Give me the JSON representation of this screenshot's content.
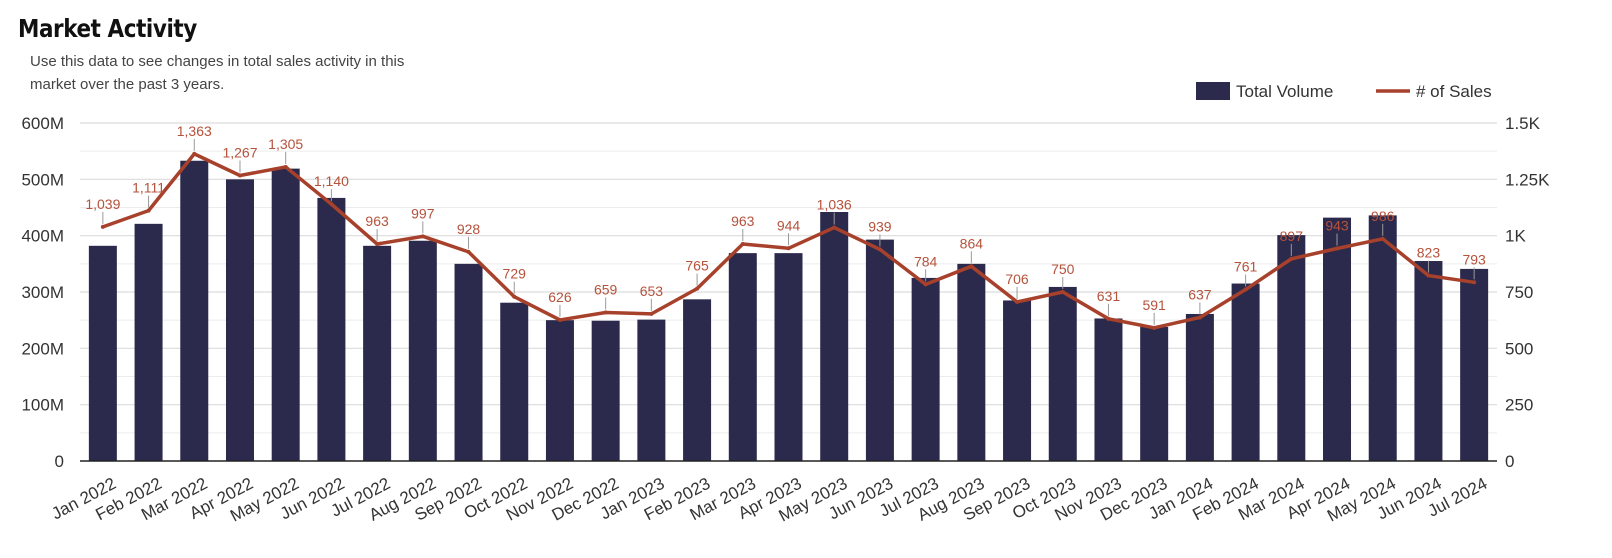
{
  "header": {
    "title": "Market Activity",
    "subtitle": "Use this data to see changes in total sales activity in this market over the past 3 years."
  },
  "colors": {
    "bar": "#2b2a4c",
    "line": "#a8412b",
    "label": "#b5523b",
    "grid": "#dcdcdc"
  },
  "chart_data": {
    "type": "bar",
    "title": "Market Activity",
    "categories": [
      "Jan 2022",
      "Feb 2022",
      "Mar 2022",
      "Apr 2022",
      "May 2022",
      "Jun 2022",
      "Jul 2022",
      "Aug 2022",
      "Sep 2022",
      "Oct 2022",
      "Nov 2022",
      "Dec 2022",
      "Jan 2023",
      "Feb 2023",
      "Mar 2023",
      "Apr 2023",
      "May 2023",
      "Jun 2023",
      "Jul 2023",
      "Aug 2023",
      "Sep 2023",
      "Oct 2023",
      "Nov 2023",
      "Dec 2023",
      "Jan 2024",
      "Feb 2024",
      "Mar 2024",
      "Apr 2024",
      "May 2024",
      "Jun 2024",
      "Jul 2024"
    ],
    "series": [
      {
        "name": "Total Volume",
        "type": "bar",
        "axis": "left",
        "values": [
          382000000,
          421000000,
          533000000,
          500000000,
          519000000,
          467000000,
          382000000,
          391000000,
          350000000,
          281000000,
          250000000,
          249000000,
          251000000,
          287000000,
          369000000,
          369000000,
          442000000,
          393000000,
          325000000,
          350000000,
          285000000,
          309000000,
          253000000,
          238000000,
          261000000,
          315000000,
          401000000,
          432000000,
          436000000,
          355000000,
          341000000
        ]
      },
      {
        "name": "# of Sales",
        "type": "line",
        "axis": "right",
        "values": [
          1039,
          1111,
          1363,
          1267,
          1305,
          1140,
          963,
          997,
          928,
          729,
          626,
          659,
          653,
          765,
          963,
          944,
          1036,
          939,
          784,
          864,
          706,
          750,
          631,
          591,
          637,
          761,
          897,
          943,
          986,
          823,
          793
        ],
        "labels": [
          "1,039",
          "1,111",
          "1,363",
          "1,267",
          "1,305",
          "1,140",
          "963",
          "997",
          "928",
          "729",
          "626",
          "659",
          "653",
          "765",
          "963",
          "944",
          "1,036",
          "939",
          "784",
          "864",
          "706",
          "750",
          "631",
          "591",
          "637",
          "761",
          "897",
          "943",
          "986",
          "823",
          "793"
        ]
      }
    ],
    "y_left": {
      "ylim": [
        0,
        600000000
      ],
      "ticks": [
        0,
        100000000,
        200000000,
        300000000,
        400000000,
        500000000,
        600000000
      ],
      "tick_labels": [
        "0",
        "100M",
        "200M",
        "300M",
        "400M",
        "500M",
        "600M"
      ]
    },
    "y_right": {
      "ylim": [
        0,
        1500
      ],
      "ticks": [
        0,
        250,
        500,
        750,
        1000,
        1250,
        1500
      ],
      "tick_labels": [
        "0",
        "250",
        "500",
        "750",
        "1K",
        "1.25K",
        "1.5K"
      ]
    },
    "grid": true,
    "legend": "top-right"
  }
}
